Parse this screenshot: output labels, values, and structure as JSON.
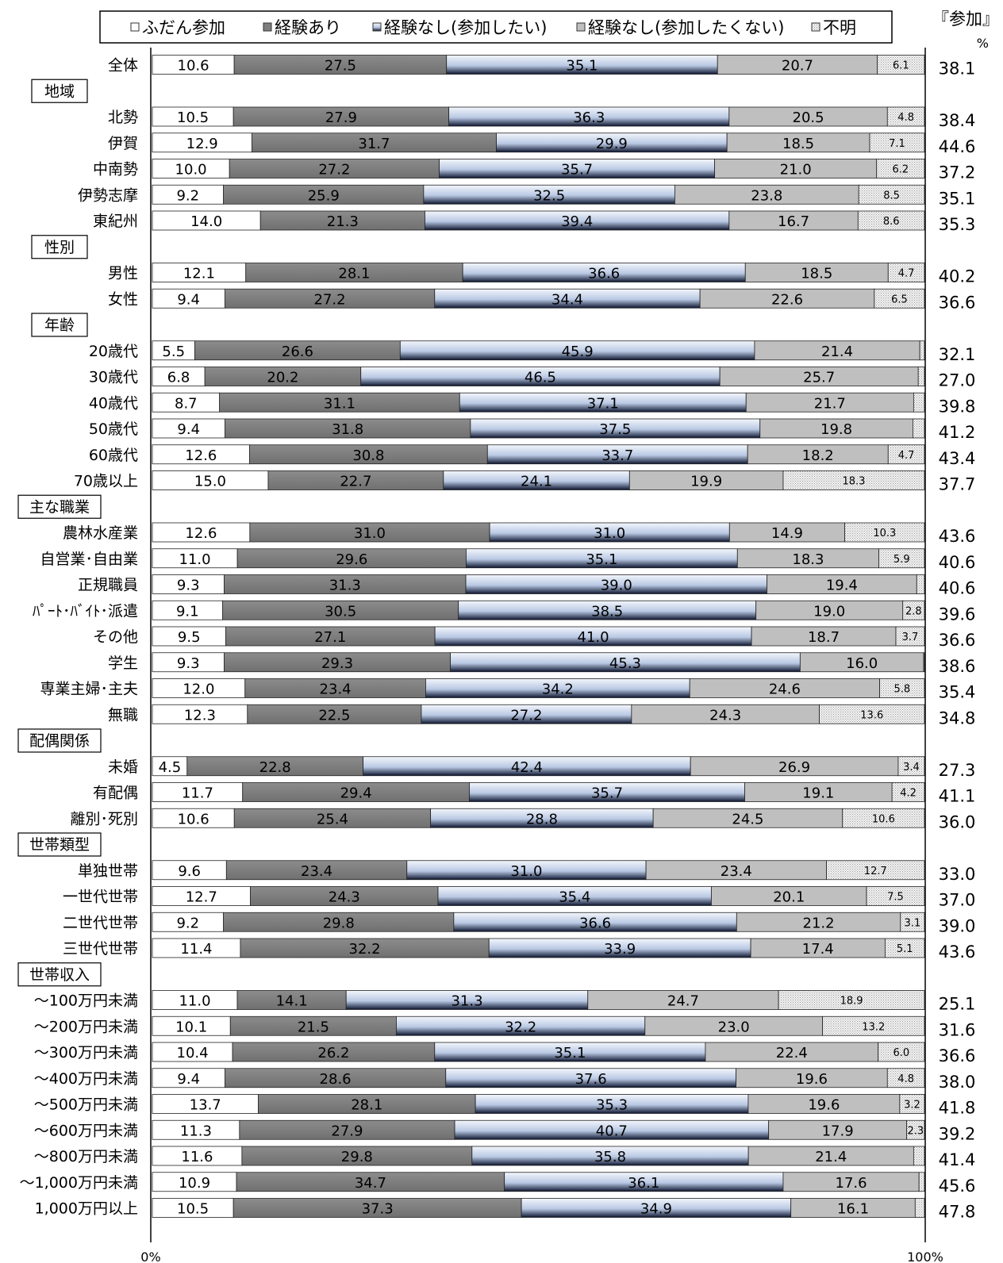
{
  "legend": [
    {
      "label": "ふだん参加",
      "color": "#ffffff"
    },
    {
      "label": "経験あり",
      "color": "#7f7f7f"
    },
    {
      "label": "経験なし(参加したい)",
      "color": "#c5d3ea"
    },
    {
      "label": "経験なし(参加したくない)",
      "color": "#bfbfbf"
    },
    {
      "label": "不明",
      "color": "#e9e9e9"
    }
  ],
  "right_header": "『参加』",
  "right_unit": "%",
  "axis": {
    "min_label": "0%",
    "max_label": "100%"
  },
  "chart_data": {
    "type": "bar",
    "orientation": "horizontal",
    "stacked": true,
    "xlim": [
      0,
      100
    ],
    "series_names": [
      "ふだん参加",
      "経験あり",
      "経験なし(参加したい)",
      "経験なし(参加したくない)",
      "不明"
    ],
    "rows": [
      {
        "kind": "bar",
        "label": "全体",
        "values": [
          10.6,
          27.5,
          35.1,
          20.7,
          6.1
        ],
        "total": "38.1"
      },
      {
        "kind": "group",
        "label": "地域"
      },
      {
        "kind": "bar",
        "label": "北勢",
        "values": [
          10.5,
          27.9,
          36.3,
          20.5,
          4.8
        ],
        "total": "38.4"
      },
      {
        "kind": "bar",
        "label": "伊賀",
        "values": [
          12.9,
          31.7,
          29.9,
          18.5,
          7.1
        ],
        "total": "44.6"
      },
      {
        "kind": "bar",
        "label": "中南勢",
        "values": [
          10.0,
          27.2,
          35.7,
          21.0,
          6.2
        ],
        "total": "37.2"
      },
      {
        "kind": "bar",
        "label": "伊勢志摩",
        "values": [
          9.2,
          25.9,
          32.5,
          23.8,
          8.5
        ],
        "total": "35.1"
      },
      {
        "kind": "bar",
        "label": "東紀州",
        "values": [
          14.0,
          21.3,
          39.4,
          16.7,
          8.6
        ],
        "total": "35.3"
      },
      {
        "kind": "group",
        "label": "性別"
      },
      {
        "kind": "bar",
        "label": "男性",
        "values": [
          12.1,
          28.1,
          36.6,
          18.5,
          4.7
        ],
        "total": "40.2"
      },
      {
        "kind": "bar",
        "label": "女性",
        "values": [
          9.4,
          27.2,
          34.4,
          22.6,
          6.5
        ],
        "total": "36.6"
      },
      {
        "kind": "group",
        "label": "年齢"
      },
      {
        "kind": "bar",
        "label": "20歳代",
        "values": [
          5.5,
          26.6,
          45.9,
          21.4,
          0.6
        ],
        "total": "32.1"
      },
      {
        "kind": "bar",
        "label": "30歳代",
        "values": [
          6.8,
          20.2,
          46.5,
          25.7,
          0.8
        ],
        "total": "27.0"
      },
      {
        "kind": "bar",
        "label": "40歳代",
        "values": [
          8.7,
          31.1,
          37.1,
          21.7,
          1.4
        ],
        "total": "39.8"
      },
      {
        "kind": "bar",
        "label": "50歳代",
        "values": [
          9.4,
          31.8,
          37.5,
          19.8,
          1.5
        ],
        "total": "41.2"
      },
      {
        "kind": "bar",
        "label": "60歳代",
        "values": [
          12.6,
          30.8,
          33.7,
          18.2,
          4.7
        ],
        "total": "43.4"
      },
      {
        "kind": "bar",
        "label": "70歳以上",
        "values": [
          15.0,
          22.7,
          24.1,
          19.9,
          18.3
        ],
        "total": "37.7"
      },
      {
        "kind": "group",
        "label": "主な職業"
      },
      {
        "kind": "bar",
        "label": "農林水産業",
        "values": [
          12.6,
          31.0,
          31.0,
          14.9,
          10.3
        ],
        "total": "43.6"
      },
      {
        "kind": "bar",
        "label": "自営業･自由業",
        "values": [
          11.0,
          29.6,
          35.1,
          18.3,
          5.9
        ],
        "total": "40.6"
      },
      {
        "kind": "bar",
        "label": "正規職員",
        "values": [
          9.3,
          31.3,
          39.0,
          19.4,
          1.0
        ],
        "total": "40.6"
      },
      {
        "kind": "bar",
        "label": "ﾊﾟｰﾄ･ﾊﾞｲﾄ･派遣",
        "values": [
          9.1,
          30.5,
          38.5,
          19.0,
          2.8
        ],
        "total": "39.6"
      },
      {
        "kind": "bar",
        "label": "その他",
        "values": [
          9.5,
          27.1,
          41.0,
          18.7,
          3.7
        ],
        "total": "36.6"
      },
      {
        "kind": "bar",
        "label": "学生",
        "values": [
          9.3,
          29.3,
          45.3,
          16.0,
          0.1
        ],
        "total": "38.6"
      },
      {
        "kind": "bar",
        "label": "専業主婦･主夫",
        "values": [
          12.0,
          23.4,
          34.2,
          24.6,
          5.8
        ],
        "total": "35.4"
      },
      {
        "kind": "bar",
        "label": "無職",
        "values": [
          12.3,
          22.5,
          27.2,
          24.3,
          13.6
        ],
        "total": "34.8"
      },
      {
        "kind": "group",
        "label": "配偶関係"
      },
      {
        "kind": "bar",
        "label": "未婚",
        "values": [
          4.5,
          22.8,
          42.4,
          26.9,
          3.4
        ],
        "total": "27.3"
      },
      {
        "kind": "bar",
        "label": "有配偶",
        "values": [
          11.7,
          29.4,
          35.7,
          19.1,
          4.2
        ],
        "total": "41.1"
      },
      {
        "kind": "bar",
        "label": "離別･死別",
        "values": [
          10.6,
          25.4,
          28.8,
          24.5,
          10.6
        ],
        "total": "36.0"
      },
      {
        "kind": "group",
        "label": "世帯類型"
      },
      {
        "kind": "bar",
        "label": "単独世帯",
        "values": [
          9.6,
          23.4,
          31.0,
          23.4,
          12.7
        ],
        "total": "33.0"
      },
      {
        "kind": "bar",
        "label": "一世代世帯",
        "values": [
          12.7,
          24.3,
          35.4,
          20.1,
          7.5
        ],
        "total": "37.0"
      },
      {
        "kind": "bar",
        "label": "二世代世帯",
        "values": [
          9.2,
          29.8,
          36.6,
          21.2,
          3.1
        ],
        "total": "39.0"
      },
      {
        "kind": "bar",
        "label": "三世代世帯",
        "values": [
          11.4,
          32.2,
          33.9,
          17.4,
          5.1
        ],
        "total": "43.6"
      },
      {
        "kind": "group",
        "label": "世帯収入"
      },
      {
        "kind": "bar",
        "label": "～100万円未満",
        "values": [
          11.0,
          14.1,
          31.3,
          24.7,
          18.9
        ],
        "total": "25.1"
      },
      {
        "kind": "bar",
        "label": "～200万円未満",
        "values": [
          10.1,
          21.5,
          32.2,
          23.0,
          13.2
        ],
        "total": "31.6"
      },
      {
        "kind": "bar",
        "label": "～300万円未満",
        "values": [
          10.4,
          26.2,
          35.1,
          22.4,
          6.0
        ],
        "total": "36.6"
      },
      {
        "kind": "bar",
        "label": "～400万円未満",
        "values": [
          9.4,
          28.6,
          37.6,
          19.6,
          4.8
        ],
        "total": "38.0"
      },
      {
        "kind": "bar",
        "label": "～500万円未満",
        "values": [
          13.7,
          28.1,
          35.3,
          19.6,
          3.2
        ],
        "total": "41.8"
      },
      {
        "kind": "bar",
        "label": "～600万円未満",
        "values": [
          11.3,
          27.9,
          40.7,
          17.9,
          2.3
        ],
        "total": "39.2"
      },
      {
        "kind": "bar",
        "label": "～800万円未満",
        "values": [
          11.6,
          29.8,
          35.8,
          21.4,
          1.4
        ],
        "total": "41.4"
      },
      {
        "kind": "bar",
        "label": "～1,000万円未満",
        "values": [
          10.9,
          34.7,
          36.1,
          17.6,
          0.7
        ],
        "total": "45.6"
      },
      {
        "kind": "bar",
        "label": "1,000万円以上",
        "values": [
          10.5,
          37.3,
          34.9,
          16.1,
          1.2
        ],
        "total": "47.8"
      }
    ]
  }
}
